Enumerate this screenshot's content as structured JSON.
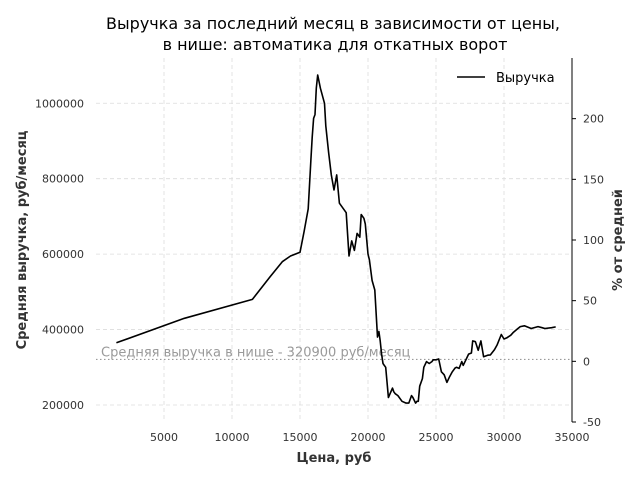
{
  "chart_data": {
    "type": "line",
    "title_line1": "Выручка за последний месяц в зависимости от цены,",
    "title_line2": "в нише: автоматика для откатных ворот",
    "xlabel": "Цена, руб",
    "ylabel": "Средняя выручка, руб/месяц",
    "ylabel_right": "% от средней",
    "xlim": [
      0,
      35000
    ],
    "ylim": [
      155000,
      1120000
    ],
    "ylim_right": [
      -50,
      250
    ],
    "x_ticks": [
      5000,
      10000,
      15000,
      20000,
      25000,
      30000,
      35000
    ],
    "y_ticks": [
      200000,
      400000,
      600000,
      800000,
      1000000
    ],
    "y_ticks_right": [
      -50,
      0,
      50,
      100,
      150,
      200
    ],
    "grid": true,
    "legend_position": "top-right",
    "series": [
      {
        "name": "Выручка",
        "color": "#000000",
        "x": [
          1500,
          6500,
          11500,
          12800,
          13700,
          14300,
          15000,
          15300,
          15600,
          15800,
          15900,
          16000,
          16100,
          16200,
          16300,
          16500,
          16800,
          16900,
          17100,
          17300,
          17500,
          17700,
          17900,
          18400,
          18600,
          18800,
          19000,
          19200,
          19400,
          19500,
          19700,
          19800,
          20000,
          20100,
          20300,
          20500,
          20700,
          20800,
          20900,
          21000,
          21100,
          21200,
          21300,
          21500,
          21800,
          21900,
          22000,
          22200,
          22500,
          22800,
          23000,
          23200,
          23300,
          23500,
          23600,
          23700,
          23800,
          24000,
          24100,
          24300,
          24500,
          24700,
          24800,
          25000,
          25200,
          25400,
          25600,
          25800,
          26000,
          26200,
          26400,
          26500,
          26700,
          26900,
          27000,
          27200,
          27400,
          27600,
          27700,
          27900,
          28100,
          28300,
          28500,
          28800,
          29000,
          29300,
          29500,
          29800,
          30000,
          30200,
          30500,
          30700,
          31000,
          31200,
          31500,
          32000,
          32500,
          32800,
          33000,
          33500,
          33800
        ],
        "y": [
          365000,
          430000,
          480000,
          540000,
          580000,
          595000,
          605000,
          660000,
          720000,
          850000,
          910000,
          960000,
          970000,
          1040000,
          1075000,
          1040000,
          1000000,
          940000,
          870000,
          810000,
          770000,
          810000,
          735000,
          710000,
          595000,
          635000,
          610000,
          655000,
          645000,
          705000,
          695000,
          680000,
          600000,
          585000,
          530000,
          505000,
          380000,
          395000,
          370000,
          335000,
          310000,
          305000,
          300000,
          220000,
          245000,
          235000,
          230000,
          225000,
          210000,
          205000,
          205000,
          225000,
          220000,
          205000,
          210000,
          210000,
          250000,
          270000,
          300000,
          315000,
          310000,
          315000,
          320000,
          320000,
          322000,
          288000,
          280000,
          260000,
          275000,
          288000,
          298000,
          300000,
          297000,
          315000,
          305000,
          320000,
          335000,
          338000,
          370000,
          368000,
          345000,
          370000,
          328000,
          332000,
          333000,
          347000,
          360000,
          387000,
          375000,
          378000,
          385000,
          393000,
          402000,
          408000,
          410000,
          403000,
          408000,
          405000,
          403000,
          405000,
          407000
        ]
      }
    ],
    "annotation": {
      "text": "Средняя выручка в нише - 320900 руб/месяц",
      "y": 320900,
      "color": "#9a9a9a"
    }
  }
}
